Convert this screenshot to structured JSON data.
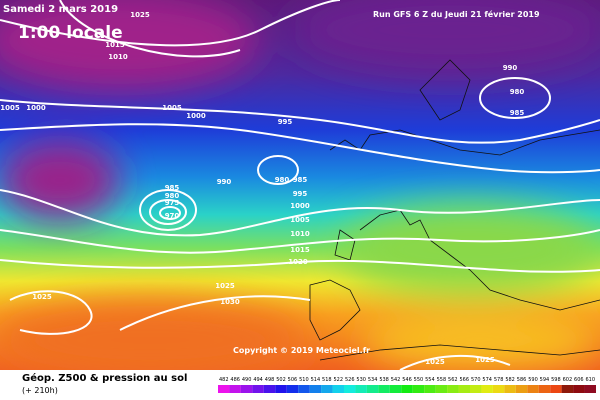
{
  "header": {
    "date": "Samedi 2 mars 2019",
    "time": "1:00 locale",
    "run": "Run GFS 6 Z du Jeudi 21 février 2019"
  },
  "copyright": "Copyright © 2019 Meteociel.fr",
  "footer": {
    "title": "Géop. Z500 & pression au sol",
    "lead": "(+ 210h)"
  },
  "isobar_labels": [
    1025,
    1015,
    1010,
    1005,
    1000,
    1005,
    1000,
    995,
    990,
    980,
    985,
    990,
    980,
    985,
    985,
    980,
    975,
    970,
    995,
    1000,
    1005,
    1010,
    1015,
    1020,
    1025,
    1030,
    1025,
    1025,
    1025
  ],
  "scale_labels": [
    482,
    486,
    490,
    494,
    498,
    502,
    506,
    510,
    514,
    518,
    522,
    526,
    530,
    534,
    538,
    542,
    546,
    550,
    554,
    558,
    562,
    566,
    570,
    574,
    578,
    582,
    586,
    590,
    594,
    598,
    602,
    606,
    610
  ]
}
